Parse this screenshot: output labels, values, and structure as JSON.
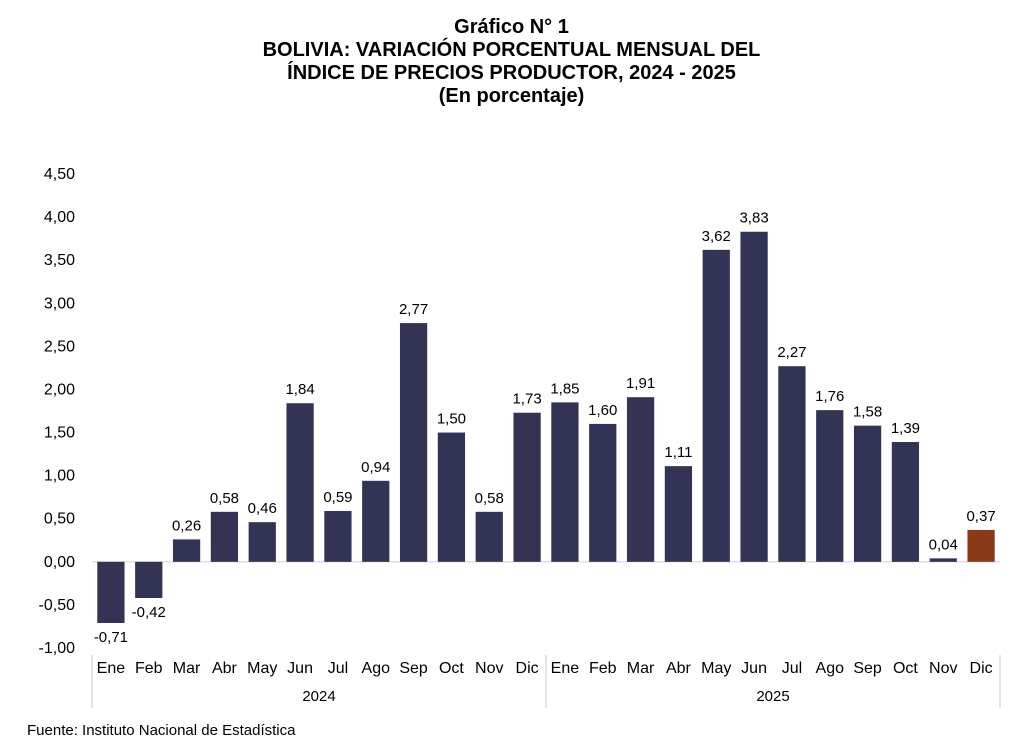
{
  "title": {
    "line1": "Gráfico N° 1",
    "line2": "BOLIVIA: VARIACIÓN PORCENTUAL MENSUAL DEL",
    "line3": "ÍNDICE DE PRECIOS PRODUCTOR, 2024 - 2025",
    "line4": "(En porcentaje)"
  },
  "source": "Fuente: Instituto Nacional de Estadística",
  "chart_data": {
    "type": "bar",
    "title": "BOLIVIA: VARIACIÓN PORCENTUAL MENSUAL DEL ÍNDICE DE PRECIOS PRODUCTOR, 2024 - 2025",
    "ylabel": "",
    "xlabel": "",
    "ylim": [
      -1.0,
      4.5
    ],
    "yticks": [
      4.5,
      4.0,
      3.5,
      3.0,
      2.5,
      2.0,
      1.5,
      1.0,
      0.5,
      0.0,
      -0.5,
      -1.0
    ],
    "ytick_labels": [
      "4,50",
      "4,00",
      "3,50",
      "3,00",
      "2,50",
      "2,00",
      "1,50",
      "1,00",
      "0,50",
      "0,00",
      "-0,50",
      "-1,00"
    ],
    "groups": [
      {
        "year": "2024",
        "categories": [
          "Ene",
          "Feb",
          "Mar",
          "Abr",
          "May",
          "Jun",
          "Jul",
          "Ago",
          "Sep",
          "Oct",
          "Nov",
          "Dic"
        ],
        "values": [
          -0.71,
          -0.42,
          0.26,
          0.58,
          0.46,
          1.84,
          0.59,
          0.94,
          2.77,
          1.5,
          0.58,
          1.73
        ],
        "labels": [
          "-0,71",
          "-0,42",
          "0,26",
          "0,58",
          "0,46",
          "1,84",
          "0,59",
          "0,94",
          "2,77",
          "1,50",
          "0,58",
          "1,73"
        ]
      },
      {
        "year": "2025",
        "categories": [
          "Ene",
          "Feb",
          "Mar",
          "Abr",
          "May",
          "Jun",
          "Jul",
          "Ago",
          "Sep",
          "Oct",
          "Nov",
          "Dic"
        ],
        "values": [
          1.85,
          1.6,
          1.91,
          1.11,
          3.62,
          3.83,
          2.27,
          1.76,
          1.58,
          1.39,
          0.04,
          0.37
        ],
        "labels": [
          "1,85",
          "1,60",
          "1,91",
          "1,11",
          "3,62",
          "3,83",
          "2,27",
          "1,76",
          "1,58",
          "1,39",
          "0,04",
          "0,37"
        ]
      }
    ],
    "bar_color": "#333355",
    "highlight_color": "#8b3a19",
    "highlight": {
      "group": 1,
      "index": 11
    },
    "grid": false,
    "legend": "none"
  }
}
